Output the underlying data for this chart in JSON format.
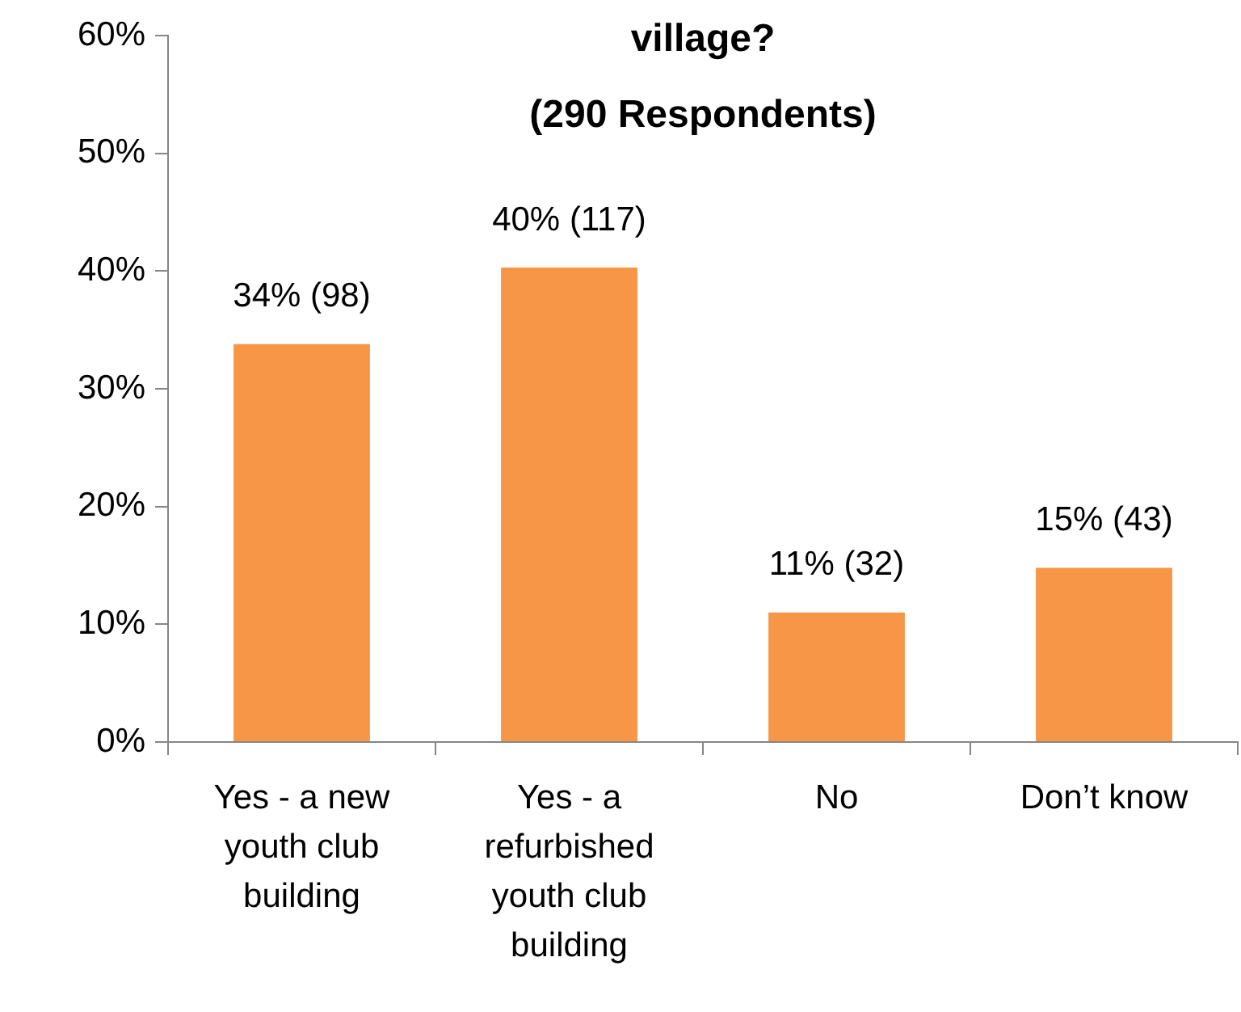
{
  "chart_data": {
    "type": "bar",
    "title": "village?\n(290 Respondents)",
    "categories": [
      "Yes - a new youth club building",
      "Yes - a refurbished youth club building",
      "No",
      "Don’t know"
    ],
    "values": [
      33.8,
      40.3,
      11.0,
      14.8
    ],
    "color": "#f79646",
    "value_labels": [
      "34% (98)",
      "40% (117)",
      "11% (32)",
      "15% (43)"
    ],
    "ylim": [
      0,
      60
    ],
    "yticks": [
      {
        "value": 0,
        "label": "0%"
      },
      {
        "value": 10,
        "label": "10%"
      },
      {
        "value": 20,
        "label": "20%"
      },
      {
        "value": 30,
        "label": "30%"
      },
      {
        "value": 40,
        "label": "40%"
      },
      {
        "value": 50,
        "label": "50%"
      },
      {
        "value": 60,
        "label": "60%"
      }
    ]
  }
}
